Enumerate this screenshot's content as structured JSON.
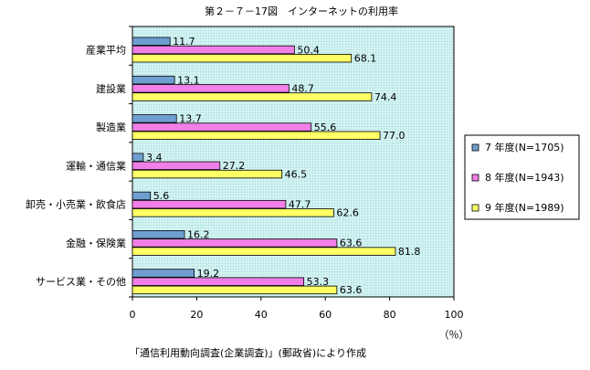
{
  "chart_data": {
    "type": "bar",
    "orientation": "horizontal",
    "title": "第２－７－17図　インターネットの利用率",
    "categories": [
      "産業平均",
      "建設業",
      "製造業",
      "運輸・通信業",
      "卸売・小売業・飲食店",
      "金融・保険業",
      "サービス業・その他"
    ],
    "series": [
      {
        "name": "7 年度(N=1705)",
        "color": "#6e9fd0",
        "values": [
          11.7,
          13.1,
          13.7,
          3.4,
          5.6,
          16.2,
          19.2
        ]
      },
      {
        "name": "8 年度(N=1943)",
        "color": "#f07fe8",
        "values": [
          50.4,
          48.7,
          55.6,
          27.2,
          47.7,
          63.6,
          53.3
        ]
      },
      {
        "name": "9 年度(N=1989)",
        "color": "#ffff66",
        "values": [
          68.1,
          74.4,
          77.0,
          46.5,
          62.6,
          81.8,
          63.6
        ]
      }
    ],
    "value_labels": [
      [
        "11.7",
        "13.1",
        "13.7",
        "3.4",
        "5.6",
        "16.2",
        "19.2"
      ],
      [
        "50.4",
        "48.7",
        "55.6",
        "27.2",
        "47.7",
        "63.6",
        "53.3"
      ],
      [
        "68.1",
        "74.4",
        "77.0",
        "46.5",
        "62.6",
        "81.8",
        "63.6"
      ]
    ],
    "xlim": [
      0,
      100
    ],
    "xticks": [
      "0",
      "20",
      "40",
      "60",
      "80",
      "100"
    ],
    "unit": "（％）",
    "source": "「通信利用動向調査(企業調査)」(郵政省)により作成",
    "plot_background": "#c8f0f0",
    "legend_position": "right"
  }
}
